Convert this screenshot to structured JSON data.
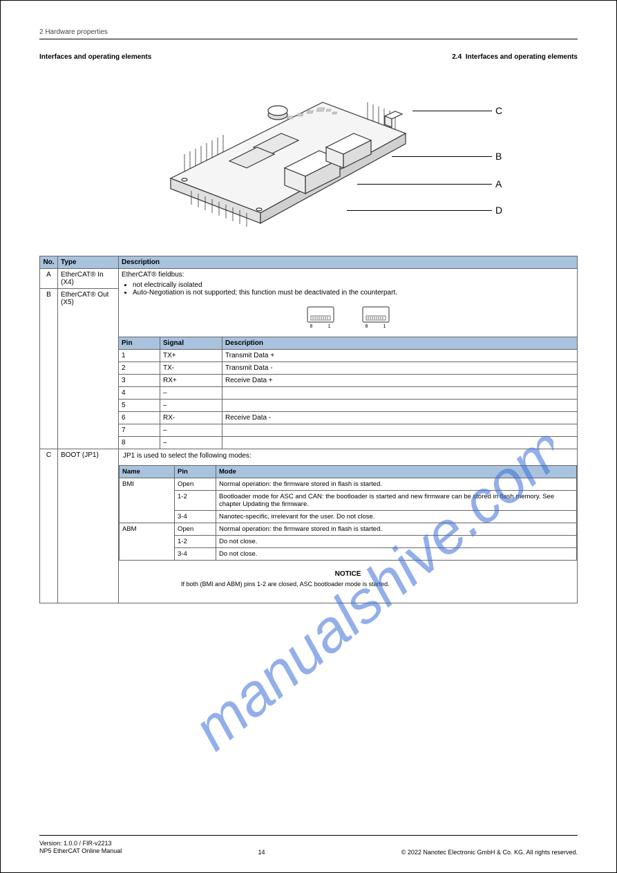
{
  "header": {
    "chapter": "2 Hardware properties",
    "title": "Interfaces and operating elements",
    "section_num": "2.4",
    "section_title": "Interfaces and operating elements"
  },
  "board_labels": {
    "A": "A",
    "B": "B",
    "C": "C",
    "D": "D"
  },
  "table1": {
    "headers": [
      "No.",
      "Type",
      "Description"
    ],
    "rowA": {
      "num": "A",
      "type": "EtherCAT® In (X4)",
      "desc_top": "EtherCAT® fieldbus:",
      "li1": "not electrically isolated",
      "li2": "Auto-Negotiation is not supported; this function must be deactivated in the counterpart."
    },
    "rowB": {
      "num": "B",
      "type": "EtherCAT® Out (X5)"
    },
    "pins": {
      "headers": [
        "Pin",
        "Signal",
        "Description"
      ],
      "rows": [
        [
          "1",
          "TX+",
          "Transmit Data +"
        ],
        [
          "2",
          "TX-",
          "Transmit Data -"
        ],
        [
          "3",
          "RX+",
          "Receive Data +"
        ],
        [
          "4",
          "–",
          ""
        ],
        [
          "5",
          "–",
          ""
        ],
        [
          "6",
          "RX-",
          "Receive Data -"
        ],
        [
          "7",
          "–",
          ""
        ],
        [
          "8",
          "–",
          ""
        ]
      ]
    },
    "rowC": {
      "num": "C",
      "type": "BOOT (JP1)",
      "sub_intro": "JP1 is used to select the following modes:",
      "sub_headers": [
        "Name",
        "Pin",
        "Mode"
      ],
      "sub": [
        {
          "name": "BMI",
          "pin_a": "Open",
          "mode_a": "Normal operation: the firmware stored in flash is started.",
          "pin_b": "1-2",
          "mode_b": "Bootloader mode for ASC and CAN: the bootloader is started and new firmware can be stored in flash memory. See chapter Updating the firmware.",
          "pin_c": "3-4",
          "mode_c": "Nanotec-specific, irrelevant for the user. Do not close."
        },
        {
          "name": "ABM",
          "pin_a": "Open",
          "mode_a": "Normal operation: the firmware stored in flash is started.",
          "pin_b": "1-2",
          "mode_b": "Do not close.",
          "pin_c": "3-4",
          "mode_c": "Do not close."
        }
      ],
      "note_label_html": "<b>NOTICE</b>",
      "note_text": "If both (BMI and ABM) pins 1-2 are closed, ASC bootloader mode is started."
    }
  },
  "footer": {
    "left1": "Version: 1.0.0 / FIR-v2213",
    "left2": "NP5 EtherCAT Online Manual",
    "mid": "14",
    "right": "© 2022 Nanotec Electronic GmbH & Co. KG. All rights reserved."
  }
}
